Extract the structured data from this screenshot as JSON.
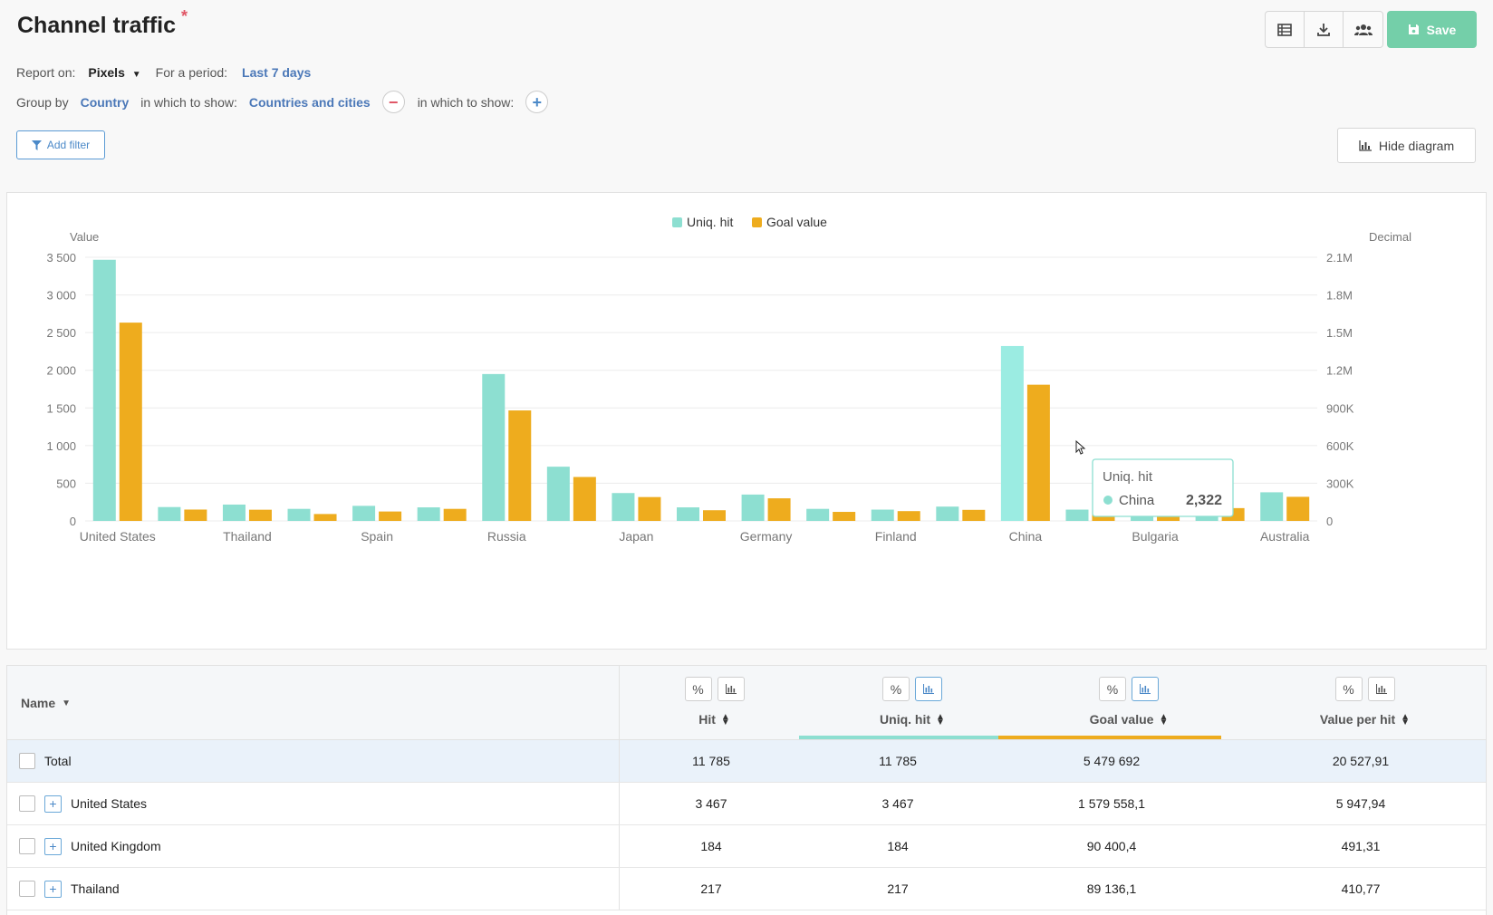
{
  "header": {
    "title": "Channel traffic",
    "required_mark": "*",
    "save_label": "Save",
    "actions": [
      "list-icon",
      "download-icon",
      "users-icon"
    ]
  },
  "report": {
    "report_on_label": "Report on:",
    "report_on_value": "Pixels",
    "period_label": "For a period:",
    "period_value": "Last 7 days"
  },
  "group": {
    "group_by_label": "Group by",
    "group_by_value": "Country",
    "show_label_1": "in which to show:",
    "show_value_1": "Countries and cities",
    "show_label_2": "in which to show:"
  },
  "filters": {
    "add_filter_label": "Add filter"
  },
  "diagram": {
    "hide_label": "Hide diagram"
  },
  "colors": {
    "uniq_hit": "#8ddfd1",
    "goal_value": "#eeac1e",
    "accent": "#4b78b8",
    "save": "#74cfa9"
  },
  "chart_data": {
    "type": "bar",
    "left_axis_label": "Value",
    "right_axis_label": "Decimal",
    "left_ticks": [
      "0",
      "500",
      "1 000",
      "1 500",
      "2 000",
      "2 500",
      "3 000",
      "3 500"
    ],
    "right_ticks": [
      "0",
      "300K",
      "600K",
      "900K",
      "1.2M",
      "1.5M",
      "1.8M",
      "2.1M"
    ],
    "ylim_left": [
      0,
      3500
    ],
    "ylim_right": [
      0,
      2100000
    ],
    "categories_shown": [
      "United States",
      "",
      "Thailand",
      "",
      "Spain",
      "",
      "Russia",
      "",
      "Japan",
      "",
      "Germany",
      "",
      "Finland",
      "",
      "China",
      "",
      "Bulgaria",
      "",
      "Australia"
    ],
    "series": [
      {
        "name": "Uniq. hit",
        "axis": "left",
        "values": [
          3467,
          184,
          217,
          160,
          200,
          180,
          1950,
          720,
          370,
          180,
          350,
          160,
          150,
          190,
          2322,
          150,
          150,
          190,
          380
        ]
      },
      {
        "name": "Goal value",
        "axis": "right",
        "values": [
          1579558,
          90400,
          89136,
          55000,
          75000,
          96000,
          880000,
          350000,
          190000,
          85000,
          180000,
          72000,
          78000,
          88000,
          1085000,
          82000,
          76000,
          102000,
          192000
        ]
      }
    ],
    "legend_position": "top-center",
    "grid": true,
    "tooltip": {
      "series": "Uniq. hit",
      "category": "China",
      "value": "2,322"
    }
  },
  "table": {
    "name_header": "Name",
    "columns": [
      {
        "label": "Hit",
        "chart_active": false
      },
      {
        "label": "Uniq. hit",
        "chart_active": true
      },
      {
        "label": "Goal value",
        "chart_active": true
      },
      {
        "label": "Value per hit",
        "chart_active": false
      }
    ],
    "rows": [
      {
        "name": "Total",
        "values": [
          "11 785",
          "11 785",
          "5 479 692",
          "20 527,91"
        ],
        "total": true
      },
      {
        "name": "United States",
        "values": [
          "3 467",
          "3 467",
          "1 579 558,1",
          "5 947,94"
        ]
      },
      {
        "name": "United Kingdom",
        "values": [
          "184",
          "184",
          "90 400,4",
          "491,31"
        ]
      },
      {
        "name": "Thailand",
        "values": [
          "217",
          "217",
          "89 136,1",
          "410,77"
        ]
      }
    ]
  }
}
